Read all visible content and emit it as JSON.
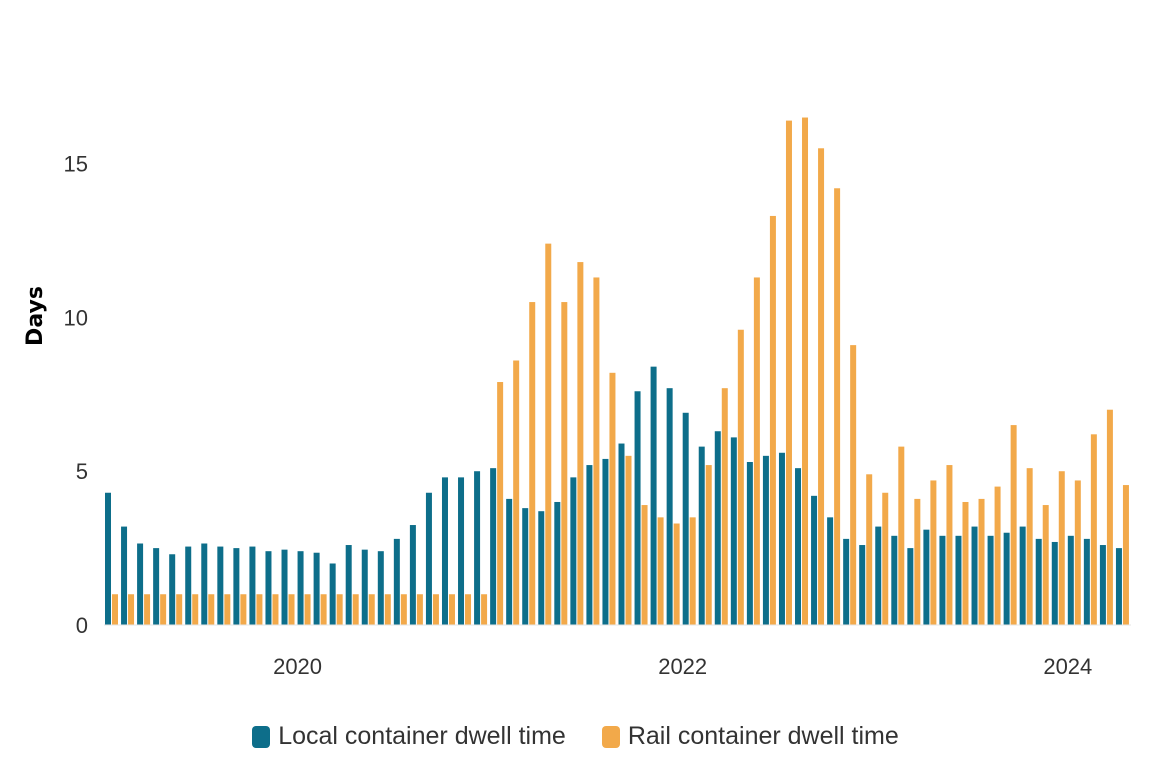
{
  "chart_data": {
    "type": "bar",
    "ylabel": "Days",
    "xlabel": "",
    "ylim": [
      0,
      17.2
    ],
    "y_ticks": [
      "0",
      "5",
      "10",
      "15"
    ],
    "x_tick_labels": [
      "2020",
      "2022",
      "2024"
    ],
    "x_start": "2019-01",
    "categories": [
      "2019-01",
      "2019-02",
      "2019-03",
      "2019-04",
      "2019-05",
      "2019-06",
      "2019-07",
      "2019-08",
      "2019-09",
      "2019-10",
      "2019-11",
      "2019-12",
      "2020-01",
      "2020-02",
      "2020-03",
      "2020-04",
      "2020-05",
      "2020-06",
      "2020-07",
      "2020-08",
      "2020-09",
      "2020-10",
      "2020-11",
      "2020-12",
      "2021-01",
      "2021-02",
      "2021-03",
      "2021-04",
      "2021-05",
      "2021-06",
      "2021-07",
      "2021-08",
      "2021-09",
      "2021-10",
      "2021-11",
      "2021-12",
      "2022-01",
      "2022-02",
      "2022-03",
      "2022-04",
      "2022-05",
      "2022-06",
      "2022-07",
      "2022-08",
      "2022-09",
      "2022-10",
      "2022-11",
      "2022-12",
      "2023-01",
      "2023-02",
      "2023-03",
      "2023-04",
      "2023-05",
      "2023-06",
      "2023-07",
      "2023-08",
      "2023-09",
      "2023-10",
      "2023-11",
      "2023-12",
      "2024-01",
      "2024-02",
      "2024-03",
      "2024-04"
    ],
    "series": [
      {
        "name": "Local container dwell time",
        "color": "#0d6e8a",
        "values": [
          4.3,
          3.2,
          2.65,
          2.5,
          2.3,
          2.55,
          2.65,
          2.55,
          2.5,
          2.55,
          2.4,
          2.45,
          2.4,
          2.35,
          2.0,
          2.6,
          2.45,
          2.4,
          2.8,
          3.25,
          4.3,
          4.8,
          4.8,
          5.0,
          5.1,
          4.1,
          3.8,
          3.7,
          4.0,
          4.8,
          5.2,
          5.4,
          5.9,
          7.6,
          8.4,
          7.7,
          6.9,
          5.8,
          6.3,
          6.1,
          5.3,
          5.5,
          5.6,
          5.1,
          4.2,
          3.5,
          2.8,
          2.6,
          3.2,
          2.9,
          2.5,
          3.1,
          2.9,
          2.9,
          3.2,
          2.9,
          3.0,
          3.2,
          2.8,
          2.7,
          2.9,
          2.8,
          2.6,
          2.5
        ]
      },
      {
        "name": "Rail container dwell time",
        "color": "#f2a94a",
        "values": [
          1.0,
          1.0,
          1.0,
          1.0,
          1.0,
          1.0,
          1.0,
          1.0,
          1.0,
          1.0,
          1.0,
          1.0,
          1.0,
          1.0,
          1.0,
          1.0,
          1.0,
          1.0,
          1.0,
          1.0,
          1.0,
          1.0,
          1.0,
          1.0,
          7.9,
          8.6,
          10.5,
          12.4,
          10.5,
          11.8,
          11.3,
          8.2,
          5.5,
          3.9,
          3.5,
          3.3,
          3.5,
          5.2,
          7.7,
          9.6,
          11.3,
          13.3,
          16.4,
          16.5,
          15.5,
          14.2,
          9.1,
          4.9,
          4.3,
          5.8,
          4.1,
          4.7,
          5.2,
          4.0,
          4.1,
          4.5,
          6.5,
          5.1,
          3.9,
          5.0,
          4.7,
          6.2,
          7.0,
          4.55
        ]
      }
    ],
    "legend_position": "bottom-center",
    "grid": false
  },
  "legend": {
    "local_label": "Local container dwell time",
    "rail_label": "Rail container dwell time"
  }
}
